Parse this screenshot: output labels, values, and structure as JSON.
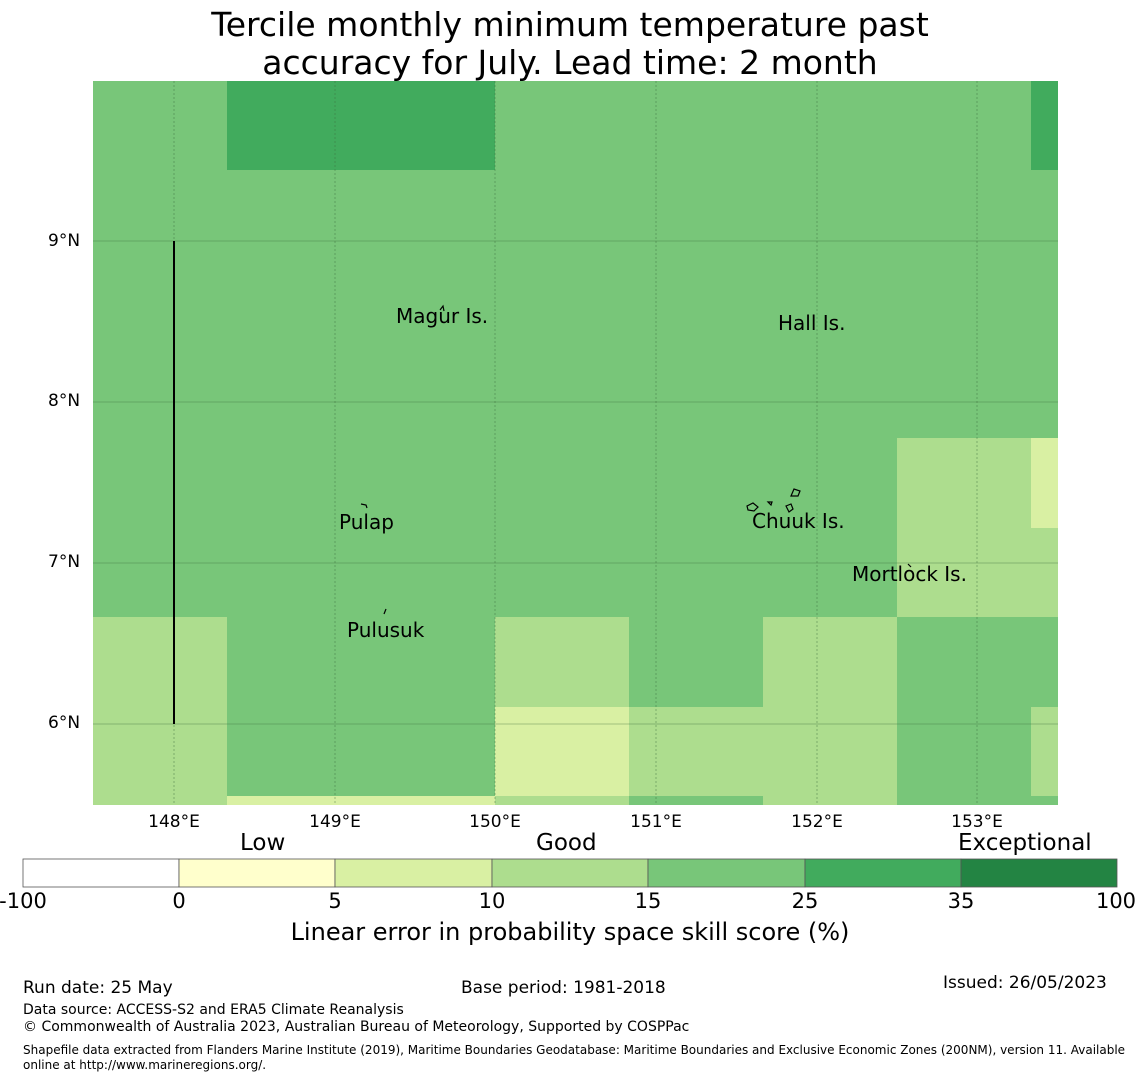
{
  "title_line1": "Tercile monthly minimum temperature past",
  "title_line2": "accuracy for July. Lead time: 2 month",
  "colors": {
    "c2": "#d9f0a3",
    "c3": "#addd8e",
    "c4": "#78c679",
    "c5": "#41ab5d",
    "c6": "#238443",
    "c1": "#ffffcc",
    "c0": "#ffffff"
  },
  "map": {
    "lat_labels": [
      "9°N",
      "8°N",
      "7°N",
      "6°N"
    ],
    "lon_labels": [
      "148°E",
      "149°E",
      "150°E",
      "151°E",
      "152°E",
      "153°E"
    ],
    "grid": [
      [
        4,
        5,
        5,
        4,
        4,
        4,
        4,
        5
      ],
      [
        4,
        4,
        4,
        4,
        4,
        4,
        4,
        4
      ],
      [
        4,
        4,
        4,
        4,
        4,
        4,
        4,
        4
      ],
      [
        4,
        4,
        4,
        4,
        4,
        4,
        4,
        4
      ],
      [
        4,
        4,
        4,
        4,
        4,
        4,
        3,
        2
      ],
      [
        4,
        4,
        4,
        4,
        4,
        4,
        3,
        3
      ],
      [
        3,
        4,
        4,
        3,
        4,
        3,
        4,
        4
      ],
      [
        3,
        4,
        4,
        2,
        3,
        3,
        4,
        3
      ],
      [
        3,
        2,
        2,
        3,
        4,
        3,
        4,
        4
      ]
    ],
    "islands": [
      {
        "name": "Magur Is."
      },
      {
        "name": "Hall Is."
      },
      {
        "name": "Pulap"
      },
      {
        "name": "Chuuk Is."
      },
      {
        "name": "Mortlock Is."
      },
      {
        "name": "Pulusuk"
      }
    ]
  },
  "colorbar": {
    "categories": [
      "Low",
      "Good",
      "Exceptional"
    ],
    "ticks": [
      "-100",
      "0",
      "5",
      "10",
      "15",
      "25",
      "35",
      "100"
    ],
    "title": "Linear error in probability space skill score (%)"
  },
  "footer": {
    "run_date": "Run date: 25 May",
    "base_period": "Base period: 1981-2018",
    "issued": "Issued: 26/05/2023",
    "data_source": "Data source: ACCESS-S2 and ERA5 Climate Reanalysis",
    "copyright": "© Commonwealth of Australia 2023, Australian Bureau of Meteorology, Supported by COSPPac",
    "shapefile": "Shapefile data extracted from Flanders Marine Institute (2019), Maritime Boundaries Geodatabase: Maritime Boundaries and Exclusive Economic Zones (200NM), version 11. Available online at http://www.marineregions.org/."
  }
}
